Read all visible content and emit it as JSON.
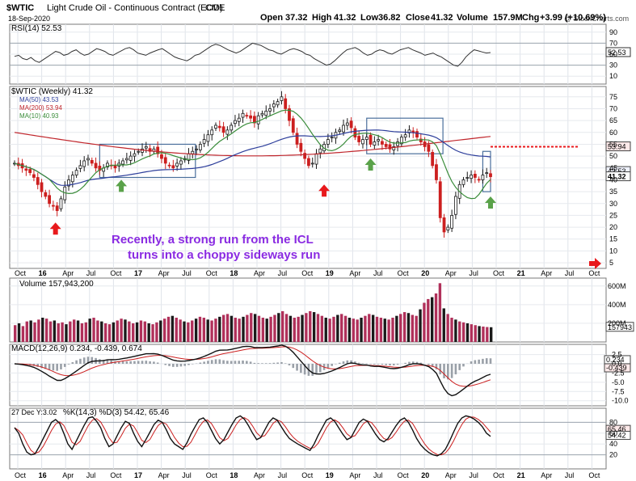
{
  "header": {
    "symbol": "$WTIC",
    "name": "Light Crude Oil - Continuous Contract (EOD)",
    "exchange": "CME",
    "date": "18-Sep-2020",
    "copyright": "@ StockCharts.com",
    "open_label": "Open",
    "open": "37.32",
    "high_label": "High",
    "high": "41.32",
    "low_label": "Low",
    "low": "36.82",
    "close_label": "Close",
    "close": "41.32",
    "volume_label": "Volume",
    "volume": "157.9M",
    "chg_label": "Chg",
    "chg": "+3.99 (+10.69%)"
  },
  "colors": {
    "up": "#1a1a1a",
    "down": "#cc1f1f",
    "ma50": "#2d3e9b",
    "ma200": "#c0262c",
    "ma10": "#3a8c3a",
    "vol_down": "#b0305a",
    "annotation": "#8a2be2",
    "arrow_red": "#e8191c",
    "arrow_green": "#5aa24a",
    "box": "#4a6f9c"
  },
  "annotation": {
    "line1": "Recently, a strong run from the ICL",
    "line2": "turns into a choppy sideways run"
  },
  "chart_data": [
    {
      "type": "line",
      "panel": "rsi",
      "label": "RSI(14) 52.53",
      "ylim": [
        0,
        100
      ],
      "y_ticks": [
        90,
        70,
        50,
        30,
        10
      ],
      "reference_lines": [
        70,
        30
      ],
      "last_value": "52.53",
      "series": [
        {
          "values": [
            46,
            48,
            42,
            40,
            44,
            38,
            35,
            40,
            45,
            50,
            55,
            53,
            48,
            50,
            55,
            58,
            52,
            48,
            50,
            55,
            60,
            58,
            55,
            50,
            48,
            52,
            56,
            60,
            62,
            58,
            52,
            50,
            48,
            52,
            55,
            58,
            60,
            55,
            50,
            45,
            42,
            40,
            38,
            42,
            48,
            50,
            55,
            60,
            65,
            68,
            66,
            62,
            58,
            55,
            52,
            55,
            60,
            65,
            70,
            68,
            66,
            62,
            58,
            56,
            52,
            50,
            54,
            58,
            60,
            58,
            55,
            50,
            48,
            42,
            38,
            34,
            30,
            32,
            38,
            45,
            52,
            58,
            60,
            62,
            58,
            52,
            48,
            50,
            55,
            58,
            56,
            52,
            50,
            54,
            58,
            60,
            62,
            58,
            55,
            52,
            48,
            50,
            52,
            48,
            45,
            40,
            35,
            30,
            28,
            35,
            45,
            52,
            58,
            56,
            54,
            52,
            53
          ]
        }
      ]
    },
    {
      "type": "line",
      "panel": "price",
      "label": "$WTIC (Weekly) 41.32",
      "y_ticks": [
        75,
        70,
        65,
        60,
        55,
        50,
        45,
        40,
        35,
        30,
        25,
        20,
        15,
        10,
        5
      ],
      "x_ticks": [
        "Oct",
        "16",
        "Apr",
        "Jul",
        "Oct",
        "17",
        "Apr",
        "Jul",
        "Oct",
        "18",
        "Apr",
        "Jul",
        "Oct",
        "19",
        "Apr",
        "Jul",
        "Oct",
        "20",
        "Apr",
        "Jul",
        "Oct",
        "21",
        "Apr",
        "Jul",
        "Oct"
      ],
      "legend": [
        {
          "name": "MA(50) 43.53",
          "color": "#2d3e9b"
        },
        {
          "name": "MA(200) 53.94",
          "color": "#c0262c"
        },
        {
          "name": "MA(10) 40.93",
          "color": "#3a8c3a"
        }
      ],
      "close": [
        47,
        46,
        45,
        44,
        43,
        41,
        38,
        35,
        33,
        30,
        29,
        27,
        32,
        37,
        40,
        42,
        44,
        46,
        48,
        49,
        47,
        45,
        44,
        45,
        47,
        46,
        45,
        47,
        48,
        49,
        50,
        51,
        52,
        53,
        54,
        52,
        53,
        51,
        49,
        47,
        46,
        45,
        47,
        48,
        49,
        51,
        52,
        53,
        55,
        57,
        59,
        61,
        63,
        62,
        60,
        61,
        63,
        65,
        66,
        68,
        67,
        66,
        64,
        67,
        68,
        69,
        70,
        72,
        73,
        75,
        70,
        65,
        60,
        55,
        52,
        49,
        46,
        47,
        51,
        53,
        55,
        57,
        58,
        60,
        61,
        63,
        64,
        62,
        58,
        56,
        57,
        58,
        55,
        56,
        57,
        55,
        54,
        53,
        54,
        56,
        58,
        59,
        61,
        60,
        58,
        56,
        54,
        52,
        46,
        40,
        24,
        18,
        20,
        25,
        33,
        38,
        40,
        41,
        42,
        41,
        40,
        42,
        43,
        41.32
      ],
      "high_last": 41.32,
      "low_last": 36.82,
      "ma50_last": 43.53,
      "ma200_last": 53.94,
      "ma10_last": 40.93,
      "right_labels": [
        "53.94",
        "43.53",
        "41.32"
      ]
    },
    {
      "type": "bar",
      "panel": "volume",
      "label": "Volume 157,943,200",
      "y_ticks": [
        "600M",
        "400M",
        "200M"
      ],
      "last_value": "157943",
      "values_m": [
        180,
        200,
        170,
        220,
        230,
        210,
        240,
        260,
        250,
        220,
        230,
        200,
        210,
        190,
        220,
        240,
        230,
        200,
        210,
        250,
        260,
        230,
        220,
        200,
        190,
        210,
        230,
        250,
        240,
        220,
        200,
        210,
        230,
        220,
        200,
        190,
        210,
        230,
        250,
        270,
        280,
        260,
        240,
        220,
        210,
        230,
        250,
        270,
        260,
        240,
        230,
        250,
        270,
        290,
        300,
        280,
        260,
        250,
        270,
        290,
        310,
        300,
        280,
        260,
        250,
        270,
        290,
        310,
        330,
        300,
        280,
        260,
        270,
        290,
        310,
        330,
        320,
        300,
        280,
        260,
        250,
        270,
        290,
        300,
        280,
        260,
        250,
        240,
        260,
        280,
        300,
        290,
        270,
        260,
        250,
        240,
        260,
        280,
        300,
        320,
        310,
        290,
        280,
        350,
        420,
        460,
        480,
        520,
        630,
        360,
        300,
        260,
        240,
        220,
        210,
        200,
        190,
        180,
        170,
        165,
        160,
        158
      ]
    },
    {
      "type": "line",
      "panel": "macd",
      "label": "MACD(12,26,9) 0.234, -0.439, 0.674",
      "y_ticks": [
        2.5,
        0.0,
        -2.5,
        -5.0,
        -7.5,
        -10.0
      ],
      "last_values": {
        "macd": 0.234,
        "signal": -0.439,
        "histogram": 0.674
      },
      "right_labels": [
        "0.234",
        "-0.439"
      ]
    },
    {
      "type": "line",
      "panel": "stochastic",
      "label": "%K(14,3) %D(3) 54.42, 65.46",
      "date_label": "27 Dec Y:3.02",
      "y_ticks": [
        80,
        60,
        40,
        20
      ],
      "reference_lines": [
        80,
        20
      ],
      "last_values": {
        "k": 54.42,
        "d": 65.46
      },
      "right_labels": [
        "65.46",
        "54.42"
      ],
      "series": [
        {
          "name": "%K",
          "values": [
            70,
            60,
            40,
            25,
            20,
            22,
            35,
            50,
            65,
            80,
            85,
            78,
            60,
            40,
            30,
            45,
            60,
            75,
            88,
            90,
            82,
            70,
            50,
            35,
            40,
            55,
            70,
            82,
            78,
            60,
            45,
            35,
            48,
            62,
            76,
            84,
            80,
            66,
            50,
            40,
            35,
            30,
            42,
            58,
            72,
            85,
            88,
            80,
            65,
            50,
            40,
            48,
            62,
            76,
            88,
            92,
            86,
            74,
            60,
            48,
            52,
            66,
            80,
            88,
            84,
            72,
            60,
            50,
            45,
            40,
            36,
            32,
            28,
            40,
            56,
            70,
            84,
            88,
            82,
            70,
            58,
            48,
            52,
            66,
            80,
            86,
            82,
            70,
            58,
            48,
            44,
            50,
            62,
            74,
            84,
            88,
            80,
            66,
            50,
            38,
            30,
            24,
            20,
            18,
            22,
            30,
            45,
            62,
            78,
            88,
            92,
            90,
            86,
            80,
            72,
            60,
            54
          ]
        }
      ]
    }
  ]
}
